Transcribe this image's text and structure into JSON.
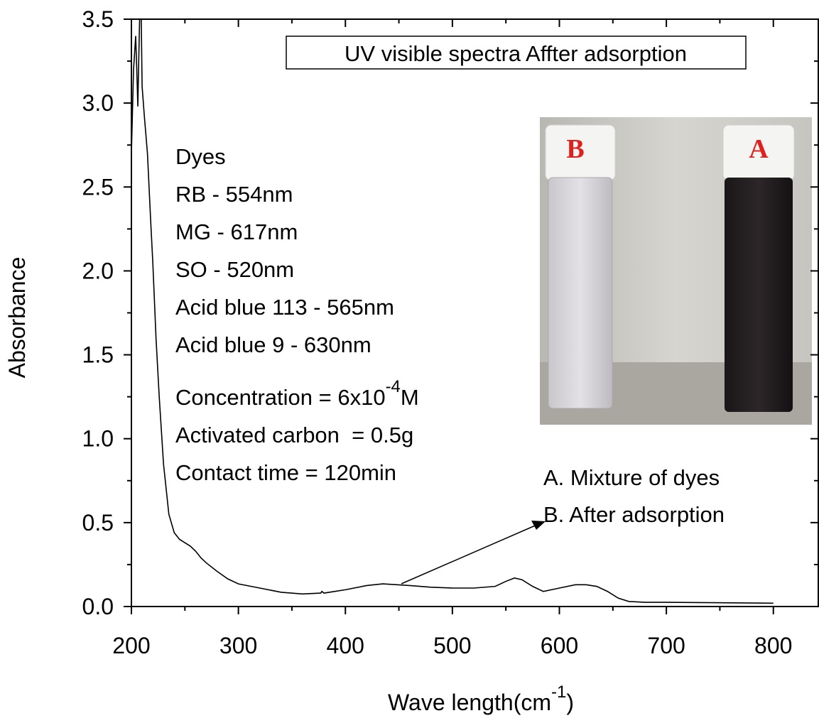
{
  "chart_data": {
    "type": "line",
    "title": "UV visible spectra Affter adsorption",
    "xlabel": {
      "text": "Wave length(cm",
      "sup": "-1",
      "tail": ")"
    },
    "ylabel": "Absorbance",
    "x": [
      200,
      202,
      204,
      205,
      206,
      207,
      208,
      209,
      210,
      212,
      215,
      218,
      220,
      223,
      226,
      230,
      235,
      240,
      245,
      250,
      255,
      260,
      265,
      270,
      280,
      290,
      300,
      320,
      340,
      360,
      377,
      378,
      380,
      400,
      420,
      435,
      460,
      480,
      500,
      520,
      540,
      550,
      558,
      565,
      575,
      585,
      600,
      615,
      625,
      635,
      645,
      655,
      665,
      680,
      700,
      800
    ],
    "values": [
      2.7,
      3.2,
      3.4,
      3.2,
      2.98,
      3.3,
      3.6,
      3.6,
      3.1,
      2.93,
      2.7,
      2.3,
      2.05,
      1.6,
      1.25,
      0.85,
      0.55,
      0.44,
      0.4,
      0.38,
      0.36,
      0.33,
      0.29,
      0.26,
      0.21,
      0.165,
      0.135,
      0.11,
      0.085,
      0.075,
      0.08,
      0.09,
      0.08,
      0.1,
      0.125,
      0.135,
      0.125,
      0.115,
      0.11,
      0.11,
      0.12,
      0.15,
      0.17,
      0.16,
      0.12,
      0.09,
      0.11,
      0.13,
      0.13,
      0.12,
      0.09,
      0.05,
      0.03,
      0.025,
      0.025,
      0.02
    ],
    "color": "#000000",
    "xlim": [
      200,
      842
    ],
    "ylim": [
      0,
      3.5
    ],
    "xticks": [
      200,
      300,
      400,
      500,
      600,
      700,
      800
    ],
    "xminorticks": [
      250,
      350,
      450,
      550,
      650,
      750
    ],
    "yticks": [
      {
        "value": 0,
        "label": "0.0"
      },
      0.5,
      {
        "value": 1,
        "label": "1.0"
      },
      1.5,
      {
        "value": 2,
        "label": "2.0"
      },
      2.5,
      {
        "value": 3,
        "label": "3.0"
      },
      3.5
    ],
    "yminorticks": [
      0.25,
      0.75,
      1.25,
      1.75,
      2.25,
      2.75,
      3.25
    ],
    "dyes_heading": "Dyes",
    "dye_lines": [
      "RB - 554nm",
      "MG - 617nm",
      "SO - 520nm",
      "Acid blue 113 - 565nm",
      "Acid blue 9 - 630nm"
    ],
    "concentration": {
      "text": "Concentration = 6x10",
      "sup": "-4",
      "tail": "M"
    },
    "conditions": [
      "Activated carbon  = 0.5g",
      "Contact time = 120min"
    ],
    "notes": [
      "A. Mixture of dyes",
      "B. After adsorption"
    ],
    "photo_labels": [
      "B",
      "A"
    ]
  }
}
